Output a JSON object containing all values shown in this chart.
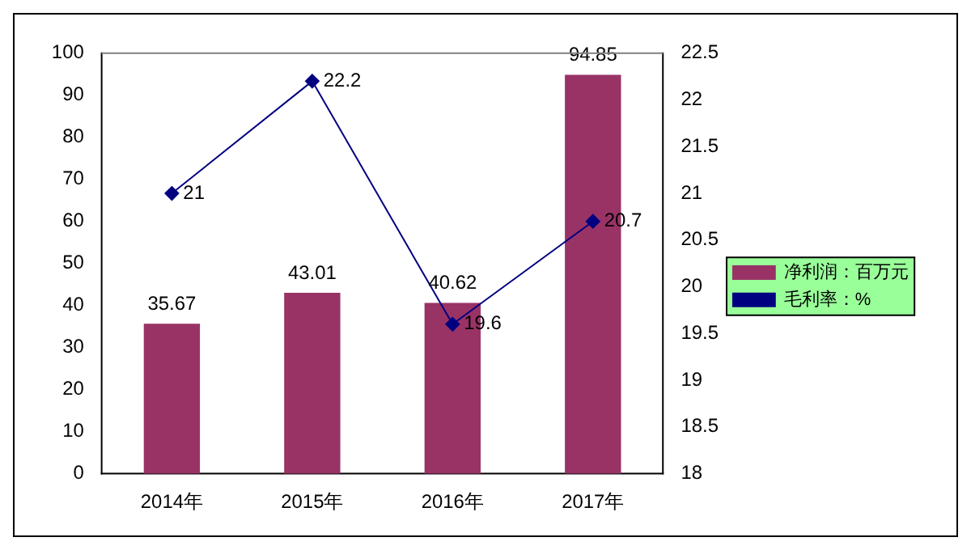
{
  "chart_data": {
    "type": "bar",
    "categories": [
      "2014年",
      "2015年",
      "2016年",
      "2017年"
    ],
    "series": [
      {
        "name": "净利润：百万元",
        "color": "#993366",
        "values": [
          35.67,
          43.01,
          40.62,
          94.85
        ]
      },
      {
        "name": "毛利率：%",
        "type": "line",
        "axis": "y2",
        "color": "#000080",
        "marker": "diamond",
        "values": [
          21,
          22.2,
          19.6,
          20.7
        ]
      }
    ],
    "ylim": [
      0,
      100
    ],
    "yticks": [
      0,
      10,
      20,
      30,
      40,
      50,
      60,
      70,
      80,
      90,
      100
    ],
    "y2lim": [
      18,
      22.5
    ],
    "y2ticks": [
      18,
      18.5,
      19,
      19.5,
      20,
      20.5,
      21,
      21.5,
      22,
      22.5
    ],
    "data_labels": true,
    "grid": false,
    "legend": "right"
  }
}
